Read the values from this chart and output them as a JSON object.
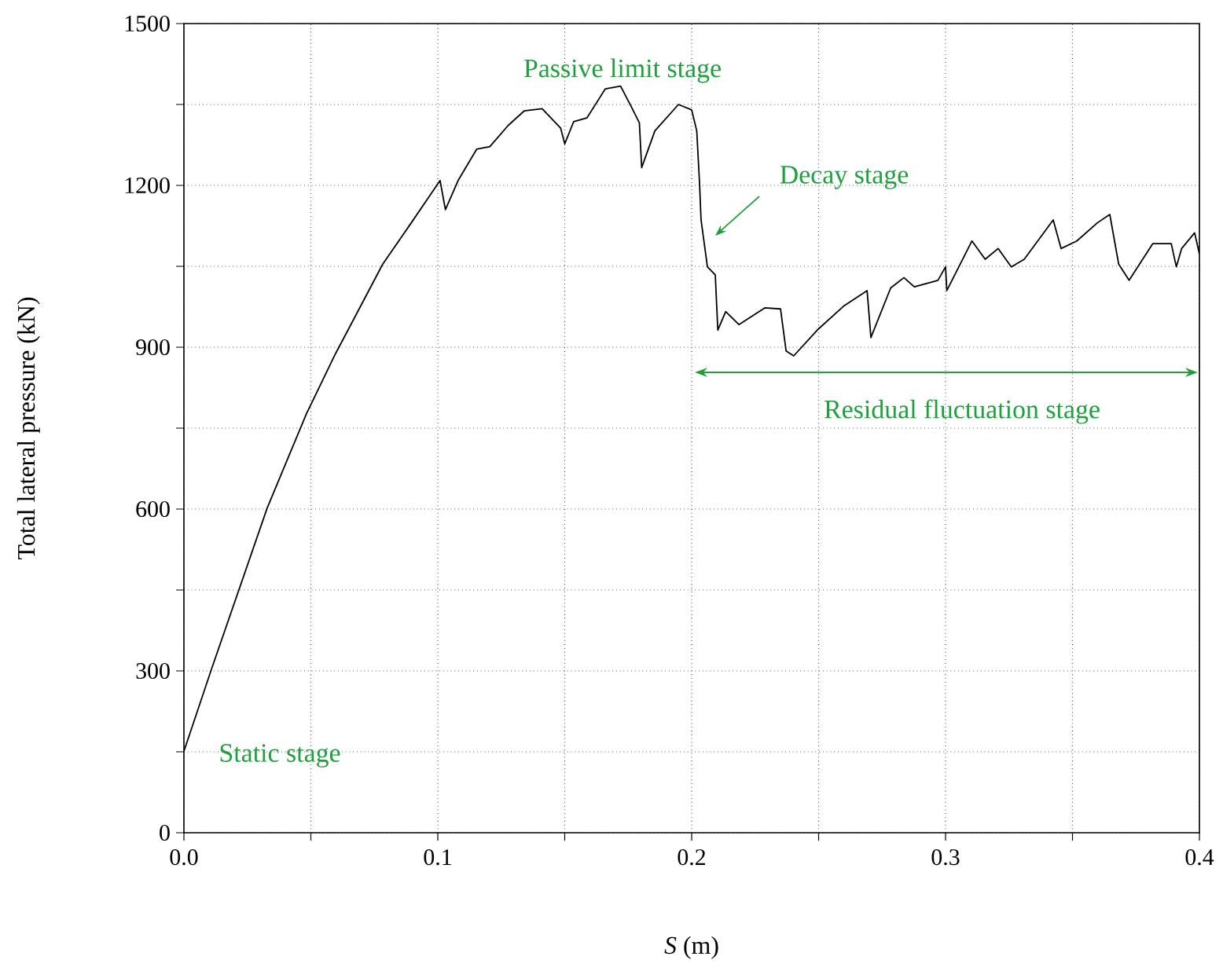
{
  "chart_data": {
    "type": "line",
    "xlabel": "*S* (m)",
    "ylabel": "Total lateral pressure (kN)",
    "xlim": [
      0,
      0.4
    ],
    "ylim": [
      0,
      1500
    ],
    "xticks": [
      {
        "value": 0,
        "label": "0.0"
      },
      {
        "value": 0.05,
        "label": null
      },
      {
        "value": 0.1,
        "label": "0.1"
      },
      {
        "value": 0.15,
        "label": null
      },
      {
        "value": 0.2,
        "label": "0.2"
      },
      {
        "value": 0.25,
        "label": null
      },
      {
        "value": 0.3,
        "label": "0.3"
      },
      {
        "value": 0.35,
        "label": null
      },
      {
        "value": 0.4,
        "label": "0.4"
      }
    ],
    "yticks": [
      0,
      {
        "value": 150,
        "label": null
      },
      300,
      {
        "value": 450,
        "label": null
      },
      600,
      {
        "value": 750,
        "label": null
      },
      900,
      {
        "value": 1050,
        "label": null
      },
      1200,
      {
        "value": 1350,
        "label": null
      },
      1500
    ],
    "grid": true,
    "series": [
      {
        "color": "#000000",
        "x": [
          0,
          0.0107,
          0.0328,
          0.0483,
          0.0597,
          0.0669,
          0.0783,
          0.0896,
          0.1009,
          0.103,
          0.108,
          0.1153,
          0.1205,
          0.1277,
          0.134,
          0.1411,
          0.1484,
          0.15,
          0.1535,
          0.1587,
          0.166,
          0.172,
          0.1763,
          0.1794,
          0.1803,
          0.1855,
          0.1948,
          0.2,
          0.202,
          0.2031,
          0.2037,
          0.2062,
          0.2093,
          0.2103,
          0.2134,
          0.2186,
          0.2289,
          0.235,
          0.2372,
          0.2402,
          0.2495,
          0.2598,
          0.2691,
          0.2706,
          0.2784,
          0.2836,
          0.2877,
          0.297,
          0.3,
          0.3005,
          0.3104,
          0.3156,
          0.3207,
          0.3259,
          0.331,
          0.3424,
          0.3455,
          0.3517,
          0.3599,
          0.3647,
          0.3682,
          0.3723,
          0.3816,
          0.3889,
          0.3909,
          0.393,
          0.3981,
          0.4
        ],
        "values": [
          151,
          301,
          602,
          777,
          888,
          952,
          1054,
          1131,
          1209,
          1155,
          1209,
          1267,
          1272,
          1311,
          1338,
          1342,
          1306,
          1277,
          1318,
          1325,
          1379,
          1384,
          1345,
          1316,
          1233,
          1301,
          1350,
          1340,
          1301,
          1204,
          1136,
          1049,
          1034,
          932,
          966,
          942,
          973,
          971,
          893,
          884,
          932,
          976,
          1005,
          918,
          1010,
          1029,
          1012,
          1024,
          1049,
          1005,
          1097,
          1063,
          1083,
          1049,
          1063,
          1136,
          1083,
          1097,
          1131,
          1146,
          1054,
          1024,
          1092,
          1092,
          1049,
          1083,
          1112,
          1073
        ]
      }
    ],
    "annotations": [
      "Passive limit stage",
      "Decay stage",
      "Static stage",
      "Residual fluctuation stage"
    ]
  }
}
